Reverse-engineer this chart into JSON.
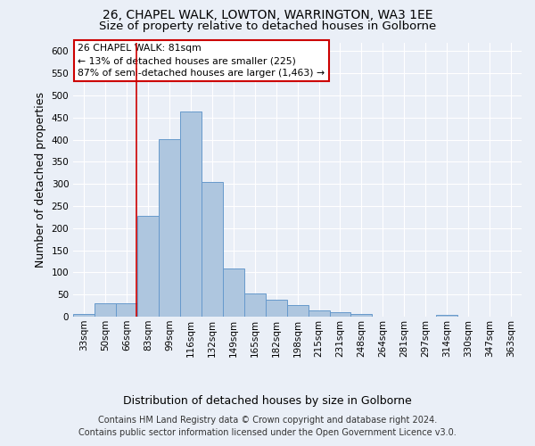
{
  "title_line1": "26, CHAPEL WALK, LOWTON, WARRINGTON, WA3 1EE",
  "title_line2": "Size of property relative to detached houses in Golborne",
  "xlabel": "Distribution of detached houses by size in Golborne",
  "ylabel": "Number of detached properties",
  "bin_labels": [
    "33sqm",
    "50sqm",
    "66sqm",
    "83sqm",
    "99sqm",
    "116sqm",
    "132sqm",
    "149sqm",
    "165sqm",
    "182sqm",
    "198sqm",
    "215sqm",
    "231sqm",
    "248sqm",
    "264sqm",
    "281sqm",
    "297sqm",
    "314sqm",
    "330sqm",
    "347sqm",
    "363sqm"
  ],
  "values": [
    6,
    30,
    30,
    228,
    402,
    463,
    305,
    110,
    53,
    39,
    26,
    14,
    11,
    7,
    0,
    0,
    0,
    5,
    0,
    0,
    0
  ],
  "bar_color": "#aec6df",
  "bar_edge_color": "#6699cc",
  "vline_position": 2.47,
  "line_color": "#cc0000",
  "annotation_text": "26 CHAPEL WALK: 81sqm\n← 13% of detached houses are smaller (225)\n87% of semi-detached houses are larger (1,463) →",
  "annotation_box_color": "#ffffff",
  "annotation_box_edge": "#cc0000",
  "ylim": [
    0,
    620
  ],
  "yticks": [
    0,
    50,
    100,
    150,
    200,
    250,
    300,
    350,
    400,
    450,
    500,
    550,
    600
  ],
  "footer_line1": "Contains HM Land Registry data © Crown copyright and database right 2024.",
  "footer_line2": "Contains public sector information licensed under the Open Government Licence v3.0.",
  "background_color": "#eaeff7",
  "plot_bg_color": "#eaeff7",
  "title_fontsize": 10,
  "subtitle_fontsize": 9.5,
  "axis_label_fontsize": 9,
  "tick_fontsize": 7.5,
  "footer_fontsize": 7
}
